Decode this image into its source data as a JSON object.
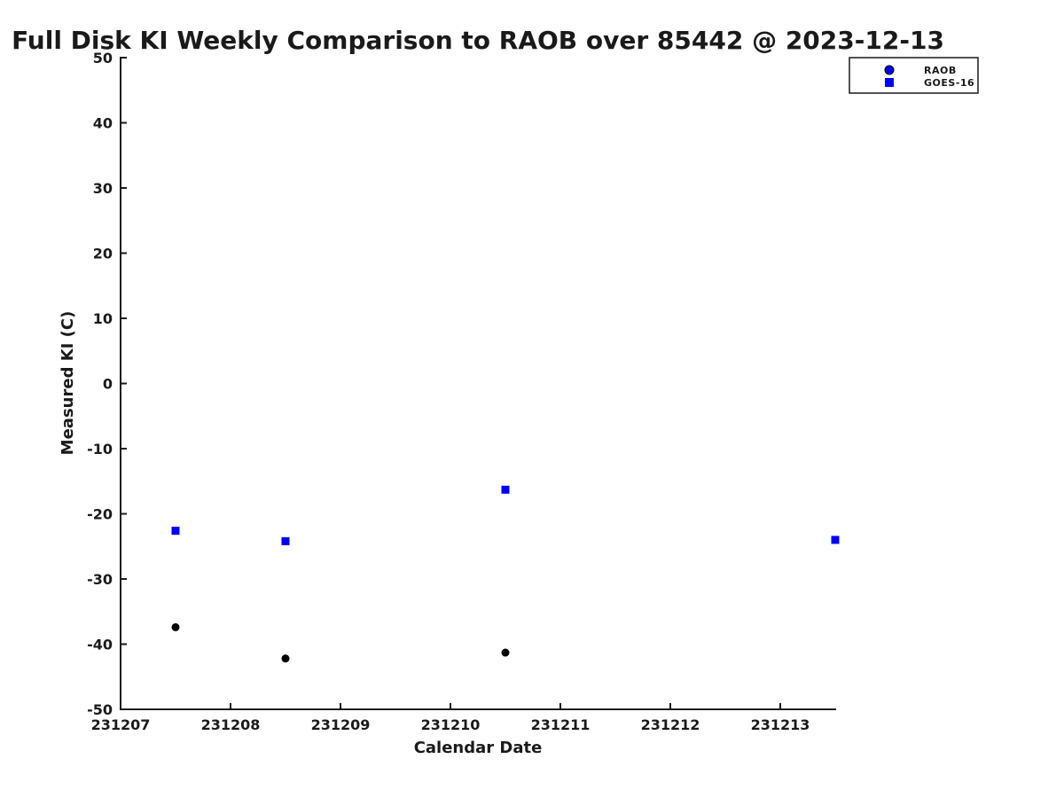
{
  "figure": {
    "background": "#ffffff"
  },
  "chart_data": {
    "type": "scatter",
    "title": "Full Disk KI Weekly Comparison to RAOB over 85442 @ 2023-12-13",
    "xlabel": "Calendar Date",
    "ylabel": "Measured KI (C)",
    "xlim": [
      231207,
      231213.5
    ],
    "ylim": [
      -50,
      50
    ],
    "x_tick_values": [
      231207,
      231208,
      231209,
      231210,
      231211,
      231212,
      231213
    ],
    "x_tick_labels": [
      "231207",
      "231208",
      "231209",
      "231210",
      "231211",
      "231212",
      "231213"
    ],
    "y_tick_values": [
      -50,
      -40,
      -30,
      -20,
      -10,
      0,
      10,
      20,
      30,
      40,
      50
    ],
    "grid": false,
    "axis_color": "#1a1a1a",
    "legend_position": "top-right",
    "series": [
      {
        "name": "RAOB",
        "marker": "circle",
        "legend_color": "#0000EE",
        "plot_color": "#000000",
        "x": [
          231207.5,
          231208.5,
          231210.5
        ],
        "y": [
          -37.4,
          -42.2,
          -41.3
        ]
      },
      {
        "name": "GOES-16",
        "marker": "square",
        "legend_color": "#0000EE",
        "plot_color": "#0000EE",
        "x": [
          231207.5,
          231208.5,
          231210.5,
          231213.5
        ],
        "y": [
          -22.6,
          -24.2,
          -16.3,
          -24.0
        ]
      }
    ]
  }
}
